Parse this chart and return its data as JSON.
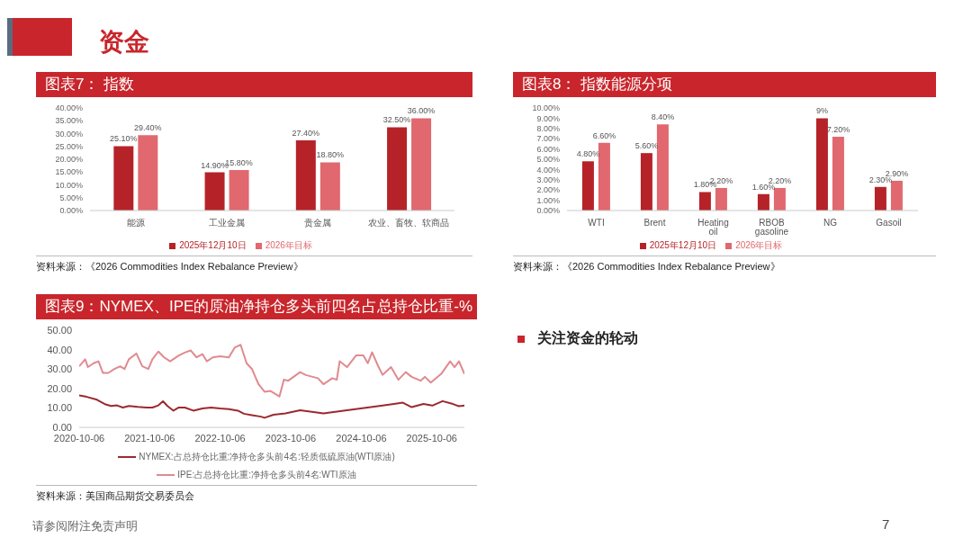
{
  "chart_data": [
    {
      "type": "bar",
      "title": "图表7： 指数",
      "categories": [
        "能源",
        "工业金属",
        "贵金属",
        "农业、畜牧、软商品"
      ],
      "series": [
        {
          "name": "2025年12月10日",
          "color": "#b52328",
          "values": [
            25.1,
            14.9,
            27.4,
            32.5
          ],
          "value_labels": [
            "25.10%",
            "14.90%",
            "27.40%",
            "32.50%"
          ]
        },
        {
          "name": "2026年目标",
          "color": "#e0686e",
          "values": [
            29.4,
            15.8,
            18.8,
            36.0
          ],
          "value_labels": [
            "29.40%",
            "15.80%",
            "18.80%",
            "36.00%"
          ]
        }
      ],
      "ylim": [
        0,
        40
      ],
      "yticks": [
        {
          "value": 0,
          "label": "0.00%"
        },
        {
          "value": 5,
          "label": "5.00%"
        },
        {
          "value": 10,
          "label": "10.00%"
        },
        {
          "value": 15,
          "label": "15.00%"
        },
        {
          "value": 20,
          "label": "20.00%"
        },
        {
          "value": 25,
          "label": "25.00%"
        },
        {
          "value": 30,
          "label": "30.00%"
        },
        {
          "value": 35,
          "label": "35.00%"
        },
        {
          "value": 40,
          "label": "40.00%"
        }
      ],
      "legend": "bottom",
      "annotations": [
        "资料来源：《2026 Commodities Index Rebalance Preview》"
      ]
    },
    {
      "type": "bar",
      "title": "图表8： 指数能源分项",
      "categories": [
        "WTI",
        "Brent",
        "Heating oil",
        "RBOB gasoline",
        "NG",
        "Gasoil"
      ],
      "series": [
        {
          "name": "2025年12月10日",
          "color": "#b52328",
          "values": [
            4.8,
            5.6,
            1.8,
            1.6,
            9,
            2.3
          ],
          "value_labels": [
            "4.80%",
            "5.60%",
            "1.80%",
            "1.60%",
            "9%",
            "2.30%"
          ]
        },
        {
          "name": "2026年目标",
          "color": "#e0686e",
          "values": [
            6.6,
            8.4,
            2.2,
            2.2,
            7.2,
            2.9
          ],
          "value_labels": [
            "6.60%",
            "8.40%",
            "2.20%",
            "2.20%",
            "7.20%",
            "2.90%"
          ]
        }
      ],
      "ylim": [
        0,
        10
      ],
      "yticks": [
        {
          "value": 0,
          "label": "0.00%"
        },
        {
          "value": 1,
          "label": "1.00%"
        },
        {
          "value": 2,
          "label": "2.00%"
        },
        {
          "value": 3,
          "label": "3.00%"
        },
        {
          "value": 4,
          "label": "4.00%"
        },
        {
          "value": 5,
          "label": "5.00%"
        },
        {
          "value": 6,
          "label": "6.00%"
        },
        {
          "value": 7,
          "label": "7.00%"
        },
        {
          "value": 8,
          "label": "8.00%"
        },
        {
          "value": 9,
          "label": "9.00%"
        },
        {
          "value": 10,
          "label": "10.00%"
        }
      ],
      "legend": "bottom",
      "annotations": [
        "资料来源：《2026 Commodities Index Rebalance Preview》"
      ]
    },
    {
      "type": "line",
      "title": "图表9：NYMEX、IPE的原油净持仓多头前四名占总持仓比重-%",
      "series": [
        {
          "name": "NYMEX:占总持仓比重:净持仓多头前4名:轻质低硫原油(WTI原油)",
          "color": "#9b2a2f",
          "x": [
            "2020-10-06",
            "2020-11-14",
            "2021-01-06",
            "2021-02-20",
            "2021-03-20",
            "2021-04-20",
            "2021-05-20",
            "2021-06-20",
            "2021-08-06",
            "2021-09-20",
            "2021-10-20",
            "2021-11-20",
            "2021-12-14",
            "2022-01-06",
            "2022-02-06",
            "2022-03-06",
            "2022-04-06",
            "2022-05-20",
            "2022-07-06",
            "2022-08-20",
            "2022-10-06",
            "2022-11-20",
            "2023-01-06",
            "2023-02-06",
            "2023-03-20",
            "2023-05-06",
            "2023-05-24",
            "2023-07-09",
            "2023-09-09",
            "2023-11-24",
            "2024-01-24",
            "2024-03-24",
            "2024-05-24",
            "2024-07-24",
            "2024-09-24",
            "2024-11-24",
            "2025-01-24",
            "2025-03-24",
            "2025-05-09",
            "2025-06-24",
            "2025-08-24",
            "2025-10-09",
            "2025-12-01",
            "2026-01-24",
            "2026-02-24",
            "2026-03-24"
          ],
          "values": [
            16.5,
            15.7,
            14.2,
            11.8,
            11.0,
            11.3,
            10.2,
            11.0,
            10.5,
            10.2,
            10.2,
            11.3,
            13.4,
            11.0,
            8.6,
            10.2,
            10.2,
            8.6,
            9.7,
            10.2,
            9.7,
            9.4,
            8.6,
            7.0,
            6.3,
            5.5,
            4.9,
            6.5,
            7.2,
            8.8,
            8.0,
            7.2,
            8.0,
            8.8,
            9.6,
            10.4,
            11.2,
            12.0,
            12.7,
            10.4,
            12.0,
            11.2,
            13.5,
            12.0,
            10.9,
            11.2
          ]
        },
        {
          "name": "IPE:占总持仓比重:净持仓多头前4名:WTI原油",
          "color": "#e08a8f",
          "x": [
            "2020-10-06",
            "2020-11-06",
            "2020-11-20",
            "2020-12-20",
            "2021-01-14",
            "2021-02-06",
            "2021-03-06",
            "2021-04-06",
            "2021-05-06",
            "2021-05-29",
            "2021-06-20",
            "2021-07-29",
            "2021-08-29",
            "2021-09-29",
            "2021-10-20",
            "2021-11-20",
            "2021-12-20",
            "2022-01-20",
            "2022-03-06",
            "2022-04-06",
            "2022-05-06",
            "2022-06-06",
            "2022-07-06",
            "2022-07-29",
            "2022-08-29",
            "2022-10-06",
            "2022-11-20",
            "2022-12-20",
            "2023-01-20",
            "2023-02-20",
            "2023-03-20",
            "2023-04-06",
            "2023-04-24",
            "2023-05-24",
            "2023-06-24",
            "2023-08-09",
            "2023-09-01",
            "2023-09-24",
            "2023-11-24",
            "2023-12-24",
            "2024-02-24",
            "2024-03-24",
            "2024-05-09",
            "2024-06-01",
            "2024-06-16",
            "2024-07-24",
            "2024-09-09",
            "2024-10-16",
            "2024-11-09",
            "2024-12-01",
            "2025-01-01",
            "2025-01-24",
            "2025-03-09",
            "2025-04-16",
            "2025-05-24",
            "2025-06-24",
            "2025-08-09",
            "2025-09-01",
            "2025-10-01",
            "2025-11-24",
            "2026-01-09",
            "2026-02-01",
            "2026-02-24",
            "2026-03-24"
          ],
          "values": [
            31.4,
            35,
            31,
            33,
            34,
            28,
            28,
            30,
            31.4,
            30,
            35,
            38,
            31.4,
            30,
            35,
            39,
            36,
            34,
            37,
            38.5,
            39.6,
            36,
            37.7,
            34,
            36,
            36.6,
            36,
            41,
            42.5,
            33,
            30,
            26,
            22,
            18.3,
            18.7,
            15.9,
            24.5,
            24,
            28.4,
            26.9,
            25.3,
            22.2,
            25.3,
            24.5,
            34,
            31,
            37,
            37,
            33,
            38.6,
            31.6,
            27,
            31,
            24.5,
            28.4,
            26,
            24,
            26,
            23,
            27.5,
            34,
            31,
            34,
            27.5
          ]
        }
      ],
      "xlim": [
        "2020-10-06",
        "2026-03-24"
      ],
      "xticks": [
        "2020-10-06",
        "2021-10-06",
        "2022-10-06",
        "2023-10-06",
        "2024-10-06",
        "2025-10-06"
      ],
      "ylim": [
        0,
        50
      ],
      "yticks": [
        {
          "value": 0,
          "label": "0.00"
        },
        {
          "value": 10,
          "label": "10.00"
        },
        {
          "value": 20,
          "label": "20.00"
        },
        {
          "value": 30,
          "label": "30.00"
        },
        {
          "value": 40,
          "label": "40.00"
        },
        {
          "value": 50,
          "label": "50.00"
        }
      ],
      "legend": "bottom",
      "annotations": [
        "资料来源：美国商品期货交易委员会"
      ]
    },
    {
      "type": "other",
      "title": "资金",
      "annotations": [
        "关注资金的轮动",
        "请参阅附注免责声明",
        "7"
      ]
    }
  ]
}
